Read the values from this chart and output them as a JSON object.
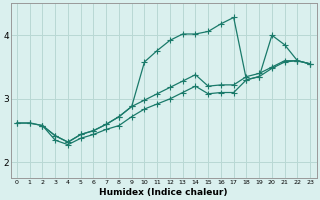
{
  "xlabel": "Humidex (Indice chaleur)",
  "bg_color": "#daf0ee",
  "grid_color": "#b8d8d4",
  "line_color": "#1a7a6a",
  "marker_color": "#1a7a6a",
  "xlim": [
    -0.5,
    23.5
  ],
  "ylim": [
    1.75,
    4.5
  ],
  "yticks": [
    2,
    3,
    4
  ],
  "xticks": [
    0,
    1,
    2,
    3,
    4,
    5,
    6,
    7,
    8,
    9,
    10,
    11,
    12,
    13,
    14,
    15,
    16,
    17,
    18,
    19,
    20,
    21,
    22,
    23
  ],
  "line1_x": [
    0,
    1,
    2,
    3,
    4,
    5,
    6,
    7,
    8,
    9,
    10,
    11,
    12,
    13,
    14,
    15,
    16,
    17,
    18,
    19,
    20,
    21,
    22,
    23
  ],
  "line1_y": [
    2.62,
    2.62,
    2.58,
    2.42,
    2.32,
    2.44,
    2.5,
    2.6,
    2.72,
    2.88,
    3.58,
    3.76,
    3.92,
    4.02,
    4.02,
    4.06,
    4.18,
    4.28,
    3.3,
    3.35,
    4.0,
    3.85,
    3.6,
    3.55
  ],
  "line2_x": [
    0,
    1,
    2,
    3,
    4,
    5,
    6,
    7,
    8,
    9,
    10,
    11,
    12,
    13,
    14,
    15,
    16,
    17,
    18,
    19,
    20,
    21,
    22,
    23
  ],
  "line2_y": [
    2.62,
    2.62,
    2.58,
    2.42,
    2.32,
    2.44,
    2.5,
    2.6,
    2.72,
    2.88,
    2.98,
    3.08,
    3.18,
    3.28,
    3.38,
    3.2,
    3.22,
    3.22,
    3.35,
    3.4,
    3.5,
    3.6,
    3.6,
    3.55
  ],
  "line3_x": [
    2,
    3,
    4,
    5,
    6,
    7,
    8,
    9,
    10,
    11,
    12,
    13,
    14,
    15,
    16,
    17,
    18,
    19,
    20,
    21,
    22,
    23
  ],
  "line3_y": [
    2.58,
    2.35,
    2.28,
    2.38,
    2.44,
    2.52,
    2.58,
    2.72,
    2.84,
    2.92,
    3.0,
    3.1,
    3.2,
    3.08,
    3.1,
    3.1,
    3.3,
    3.35,
    3.48,
    3.58,
    3.6,
    3.55
  ]
}
